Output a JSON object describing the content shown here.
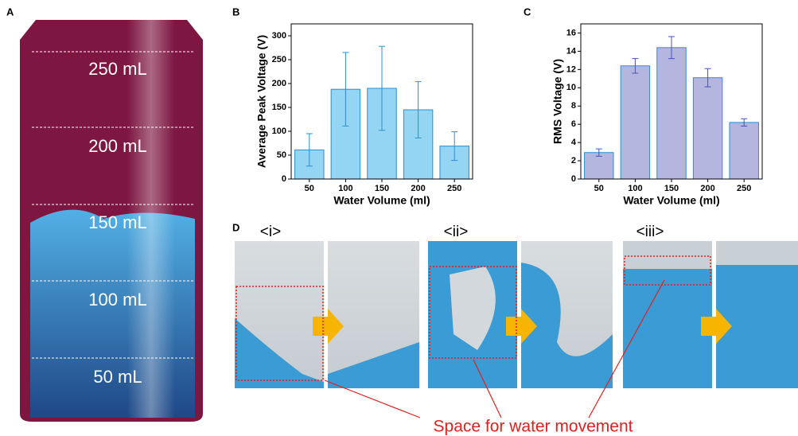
{
  "panel_labels": [
    "A",
    "B",
    "C",
    "D"
  ],
  "bottle_labels": [
    "250 mL",
    "200 mL",
    "150 mL",
    "100 mL",
    "50 mL"
  ],
  "photo_groups": [
    "<i>",
    "<ii>",
    "<iii>"
  ],
  "annotation": "Space for water movement",
  "chart_data": [
    {
      "type": "bar",
      "x_label": "Water Volume (ml)",
      "y_label": "Average Peak Voltage (V)",
      "categories": [
        "50",
        "100",
        "150",
        "200",
        "250"
      ],
      "series": [
        {
          "color": "#93d5f2",
          "values": [
            61,
            188,
            190,
            145,
            69
          ],
          "errors": [
            34,
            77,
            88,
            59,
            30
          ]
        }
      ],
      "ylim": [
        0,
        325
      ],
      "yticks": [
        0,
        50,
        100,
        150,
        200,
        250,
        300
      ]
    },
    {
      "type": "bar",
      "x_label": "Water Volume (ml)",
      "y_label": "RMS Voltage (V)",
      "categories": [
        "50",
        "100",
        "150",
        "200",
        "250"
      ],
      "series": [
        {
          "color": "#b4b6df",
          "values": [
            2.9,
            12.4,
            14.4,
            11.1,
            6.2
          ],
          "errors": [
            0.4,
            0.8,
            1.2,
            1.0,
            0.4
          ]
        }
      ],
      "ylim": [
        0,
        17
      ],
      "yticks": [
        0,
        2,
        4,
        6,
        8,
        10,
        12,
        14,
        16
      ]
    }
  ]
}
